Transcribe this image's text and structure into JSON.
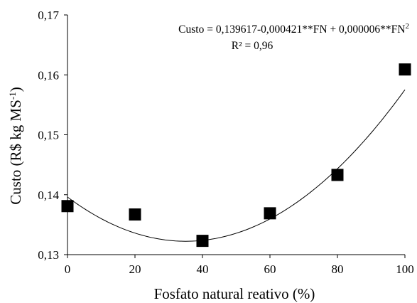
{
  "chart_data": {
    "type": "scatter",
    "xlabel": "Fosfato natural reativo (%)",
    "ylabel": "Custo (R$ kg MS",
    "ylabel_sup": "-1",
    "ylabel_close": ")",
    "x": [
      0,
      20,
      40,
      60,
      80,
      100
    ],
    "y": [
      0.1381,
      0.1367,
      0.1323,
      0.1369,
      0.1433,
      0.1609
    ],
    "xlim": [
      0,
      100
    ],
    "ylim": [
      0.13,
      0.17
    ],
    "xticks": [
      "0",
      "20",
      "40",
      "60",
      "80",
      "100"
    ],
    "yticks": [
      "0,13",
      "0,14",
      "0,15",
      "0,16",
      "0,17"
    ],
    "fit": {
      "a": 0.139617,
      "b": -0.000421,
      "c": 6e-06
    },
    "equation": {
      "main": "Custo = 0,139617-0,000421**FN + 0,000006**FN",
      "sup": "2",
      "r2": "R² = 0,96"
    },
    "marker": "square",
    "grid": false,
    "legend": "none"
  }
}
